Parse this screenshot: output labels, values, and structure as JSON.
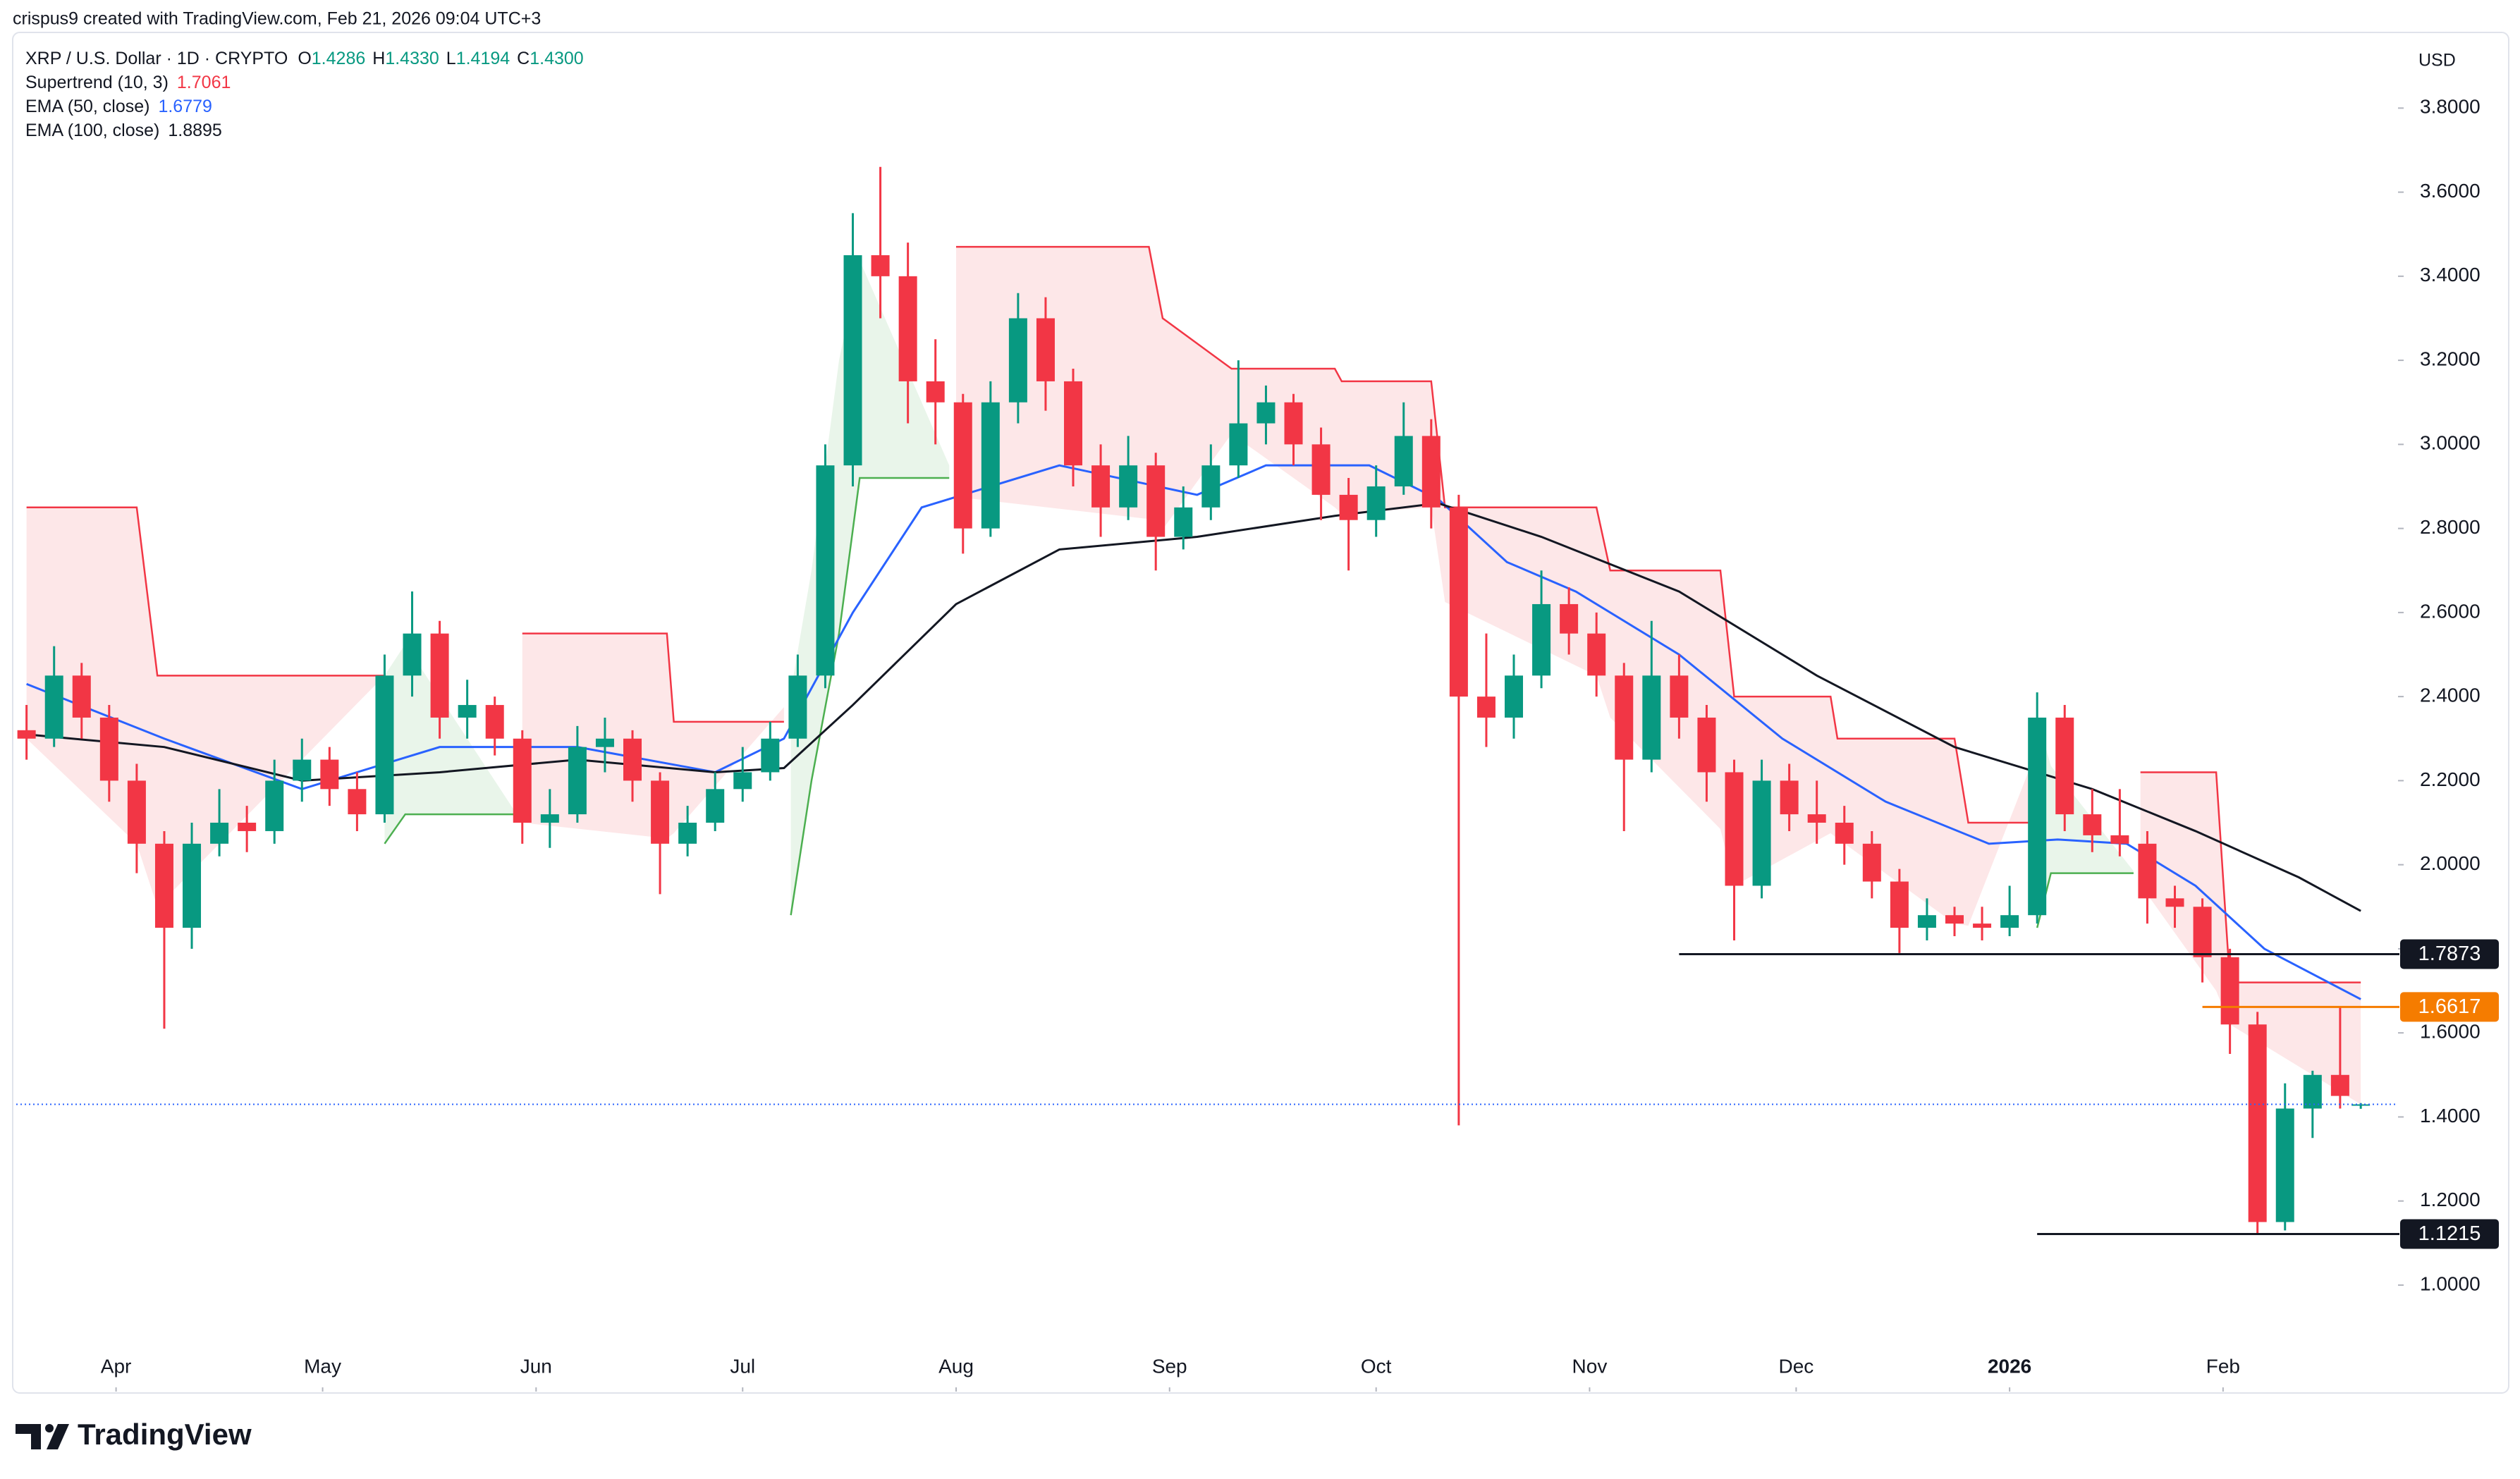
{
  "header": {
    "credit": "crispus9 created with TradingView.com, Feb 21, 2026 09:04 UTC+3",
    "symbol": "XRP / U.S. Dollar · 1D · CRYPTO",
    "ohlc_names": [
      "O",
      "H",
      "L",
      "C"
    ],
    "ohlc_values": [
      "1.4286",
      "1.4330",
      "1.4194",
      "1.4300"
    ],
    "indicators": [
      {
        "name": "Supertrend (10, 3)",
        "value": "1.7061",
        "color": "#f23645"
      },
      {
        "name": "EMA (50, close)",
        "value": "1.6779",
        "color": "#2962ff"
      },
      {
        "name": "EMA (100, close)",
        "value": "1.8895",
        "color": "#131722"
      }
    ],
    "currency": "USD",
    "brand": "TradingView"
  },
  "chart_data": {
    "type": "candlestick",
    "grid": false,
    "up_color": "#089981",
    "down_color": "#f23645",
    "x": [
      0,
      4,
      8,
      12,
      16,
      20,
      24,
      28,
      32,
      36,
      40,
      44,
      48,
      52,
      56,
      60,
      64,
      68,
      72,
      76,
      80,
      84,
      88,
      92,
      96,
      100,
      104,
      108,
      112,
      116,
      120,
      124,
      128,
      132,
      136,
      140,
      144,
      148,
      152,
      156,
      160,
      164,
      168,
      172,
      176,
      180,
      184,
      188,
      192,
      196,
      200,
      204,
      208,
      212,
      216,
      220,
      224,
      228,
      232,
      236,
      240,
      244,
      248,
      252,
      256,
      260,
      264,
      268,
      272,
      276,
      280,
      284,
      288,
      292,
      296,
      300,
      304,
      308,
      312,
      316,
      320,
      324,
      328,
      332,
      336,
      339
    ],
    "open": [
      2.32,
      2.3,
      2.45,
      2.35,
      2.2,
      2.05,
      1.85,
      2.05,
      2.1,
      2.08,
      2.2,
      2.25,
      2.18,
      2.12,
      2.45,
      2.55,
      2.35,
      2.38,
      2.3,
      2.1,
      2.12,
      2.28,
      2.3,
      2.2,
      2.05,
      2.1,
      2.18,
      2.22,
      2.3,
      2.45,
      2.95,
      3.45,
      3.4,
      3.15,
      3.1,
      2.8,
      3.1,
      3.3,
      3.15,
      2.95,
      2.85,
      2.95,
      2.78,
      2.85,
      2.95,
      3.05,
      3.1,
      3.0,
      2.88,
      2.82,
      2.9,
      3.02,
      2.85,
      2.4,
      2.35,
      2.45,
      2.62,
      2.55,
      2.45,
      2.25,
      2.45,
      2.35,
      2.22,
      1.95,
      2.2,
      2.12,
      2.1,
      2.05,
      1.96,
      1.85,
      1.88,
      1.86,
      1.85,
      1.88,
      2.35,
      2.12,
      2.07,
      2.05,
      1.92,
      1.9,
      1.78,
      1.62,
      1.15,
      1.42,
      1.5,
      1.4286
    ],
    "high": [
      2.38,
      2.52,
      2.48,
      2.38,
      2.24,
      2.08,
      2.1,
      2.18,
      2.14,
      2.25,
      2.3,
      2.28,
      2.22,
      2.5,
      2.65,
      2.58,
      2.44,
      2.4,
      2.32,
      2.18,
      2.33,
      2.35,
      2.32,
      2.22,
      2.14,
      2.22,
      2.28,
      2.34,
      2.5,
      3.0,
      3.55,
      3.66,
      3.48,
      3.25,
      3.12,
      3.15,
      3.36,
      3.35,
      3.18,
      3.0,
      3.02,
      2.98,
      2.9,
      3.0,
      3.2,
      3.14,
      3.12,
      3.04,
      2.92,
      2.95,
      3.1,
      3.06,
      2.88,
      2.55,
      2.5,
      2.7,
      2.66,
      2.6,
      2.48,
      2.58,
      2.5,
      2.38,
      2.25,
      2.25,
      2.24,
      2.2,
      2.14,
      2.08,
      1.99,
      1.92,
      1.9,
      1.9,
      1.95,
      2.41,
      2.38,
      2.18,
      2.18,
      2.08,
      1.95,
      1.92,
      1.8,
      1.65,
      1.48,
      1.51,
      1.66,
      1.433
    ],
    "low": [
      2.25,
      2.28,
      2.3,
      2.15,
      1.98,
      1.61,
      1.8,
      2.02,
      2.03,
      2.05,
      2.15,
      2.14,
      2.08,
      2.1,
      2.4,
      2.3,
      2.3,
      2.26,
      2.05,
      2.04,
      2.1,
      2.22,
      2.15,
      1.93,
      2.02,
      2.08,
      2.15,
      2.2,
      2.28,
      2.42,
      2.9,
      3.3,
      3.05,
      3.0,
      2.74,
      2.78,
      3.05,
      3.08,
      2.9,
      2.78,
      2.82,
      2.7,
      2.75,
      2.82,
      2.92,
      3.0,
      2.95,
      2.82,
      2.7,
      2.78,
      2.88,
      2.8,
      1.38,
      2.28,
      2.3,
      2.42,
      2.5,
      2.4,
      2.08,
      2.22,
      2.3,
      2.15,
      1.82,
      1.92,
      2.08,
      2.05,
      2.0,
      1.92,
      1.79,
      1.82,
      1.83,
      1.82,
      1.83,
      1.86,
      2.08,
      2.03,
      2.02,
      1.86,
      1.85,
      1.72,
      1.55,
      1.12,
      1.13,
      1.35,
      1.42,
      1.4194
    ],
    "close": [
      2.3,
      2.45,
      2.35,
      2.2,
      2.05,
      1.85,
      2.05,
      2.1,
      2.08,
      2.2,
      2.25,
      2.18,
      2.12,
      2.45,
      2.55,
      2.35,
      2.38,
      2.3,
      2.1,
      2.12,
      2.28,
      2.3,
      2.2,
      2.05,
      2.1,
      2.18,
      2.22,
      2.3,
      2.45,
      2.95,
      3.45,
      3.4,
      3.15,
      3.1,
      2.8,
      3.1,
      3.3,
      3.15,
      2.95,
      2.85,
      2.95,
      2.78,
      2.85,
      2.95,
      3.05,
      3.1,
      3.0,
      2.88,
      2.82,
      2.9,
      3.02,
      2.85,
      2.4,
      2.35,
      2.45,
      2.62,
      2.55,
      2.45,
      2.25,
      2.45,
      2.35,
      2.22,
      1.95,
      2.2,
      2.12,
      2.1,
      2.05,
      1.96,
      1.85,
      1.88,
      1.86,
      1.85,
      1.88,
      2.35,
      2.12,
      2.07,
      2.05,
      1.92,
      1.9,
      1.78,
      1.62,
      1.15,
      1.42,
      1.5,
      1.45,
      1.43
    ],
    "lines": [
      {
        "color": "#2962ff",
        "x": [
          0,
          20,
          40,
          60,
          80,
          100,
          110,
          120,
          130,
          150,
          170,
          180,
          195,
          205,
          215,
          225,
          240,
          255,
          270,
          285,
          295,
          305,
          315,
          325,
          339
        ],
        "values": [
          2.43,
          2.3,
          2.18,
          2.28,
          2.28,
          2.22,
          2.3,
          2.6,
          2.85,
          2.95,
          2.88,
          2.95,
          2.95,
          2.87,
          2.72,
          2.65,
          2.5,
          2.3,
          2.15,
          2.05,
          2.06,
          2.05,
          1.95,
          1.8,
          1.68
        ]
      },
      {
        "color": "#131722",
        "x": [
          0,
          20,
          40,
          60,
          80,
          100,
          110,
          120,
          135,
          150,
          170,
          190,
          205,
          220,
          240,
          260,
          280,
          300,
          315,
          330,
          339
        ],
        "values": [
          2.31,
          2.28,
          2.2,
          2.22,
          2.25,
          2.22,
          2.23,
          2.38,
          2.62,
          2.75,
          2.78,
          2.83,
          2.86,
          2.78,
          2.65,
          2.45,
          2.28,
          2.18,
          2.08,
          1.97,
          1.89
        ]
      }
    ],
    "supertrend": [
      {
        "color": "#f23645",
        "fill": "rgba(242,54,69,0.12)",
        "x": [
          0,
          16,
          19,
          52,
          53,
          72,
          93,
          94,
          110,
          111,
          135,
          163,
          165,
          175,
          190,
          191,
          204,
          206,
          228,
          230,
          246,
          248,
          262,
          263,
          280,
          282,
          291,
          292,
          307,
          318,
          320,
          339
        ],
        "values": [
          2.85,
          2.85,
          2.45,
          2.45,
          null,
          2.55,
          2.55,
          2.34,
          2.34,
          null,
          3.47,
          3.47,
          3.3,
          3.18,
          3.18,
          3.15,
          3.15,
          2.85,
          2.85,
          2.7,
          2.7,
          2.4,
          2.4,
          2.3,
          2.3,
          2.1,
          2.1,
          null,
          2.22,
          2.22,
          1.72,
          1.72
        ]
      },
      {
        "color": "#4caf50",
        "fill": "rgba(76,175,80,0.12)",
        "x": [
          52,
          55,
          72,
          73,
          111,
          114,
          118,
          121,
          134,
          135,
          292,
          294,
          306
        ],
        "values": [
          2.05,
          2.12,
          2.12,
          null,
          1.88,
          2.2,
          2.55,
          2.92,
          2.92,
          null,
          1.85,
          1.98,
          1.98
        ]
      }
    ],
    "levels": [
      {
        "value": 1.7873,
        "color": "#131722",
        "x_start": 240
      },
      {
        "value": 1.6617,
        "color": "#f57c00",
        "x_start": 316
      },
      {
        "value": 1.1215,
        "color": "#131722",
        "x_start": 292
      }
    ],
    "last_price_color": "#2962ff",
    "xlim": [
      -1.5,
      344
    ],
    "ylim": [
      0.75,
      3.98
    ],
    "xticks": [
      {
        "value": 13,
        "label": "Apr"
      },
      {
        "value": 43,
        "label": "May"
      },
      {
        "value": 74,
        "label": "Jun"
      },
      {
        "value": 104,
        "label": "Jul"
      },
      {
        "value": 135,
        "label": "Aug"
      },
      {
        "value": 166,
        "label": "Sep"
      },
      {
        "value": 196,
        "label": "Oct"
      },
      {
        "value": 227,
        "label": "Nov"
      },
      {
        "value": 257,
        "label": "Dec"
      },
      {
        "value": 288,
        "label": "2026",
        "bold": true
      },
      {
        "value": 319,
        "label": "Feb"
      }
    ],
    "yticks": [
      {
        "value": 1.0,
        "label": "1.0000"
      },
      {
        "value": 1.2,
        "label": "1.2000"
      },
      {
        "value": 1.4,
        "label": "1.4000"
      },
      {
        "value": 1.6,
        "label": "1.6000"
      },
      {
        "value": 1.8,
        "label": "1.8000"
      },
      {
        "value": 2.0,
        "label": "2.0000"
      },
      {
        "value": 2.2,
        "label": "2.2000"
      },
      {
        "value": 2.4,
        "label": "2.4000"
      },
      {
        "value": 2.6,
        "label": "2.6000"
      },
      {
        "value": 2.8,
        "label": "2.8000"
      },
      {
        "value": 3.0,
        "label": "3.0000"
      },
      {
        "value": 3.2,
        "label": "3.2000"
      },
      {
        "value": 3.4,
        "label": "3.4000"
      },
      {
        "value": 3.6,
        "label": "3.6000"
      },
      {
        "value": 3.8,
        "label": "3.8000"
      }
    ]
  }
}
